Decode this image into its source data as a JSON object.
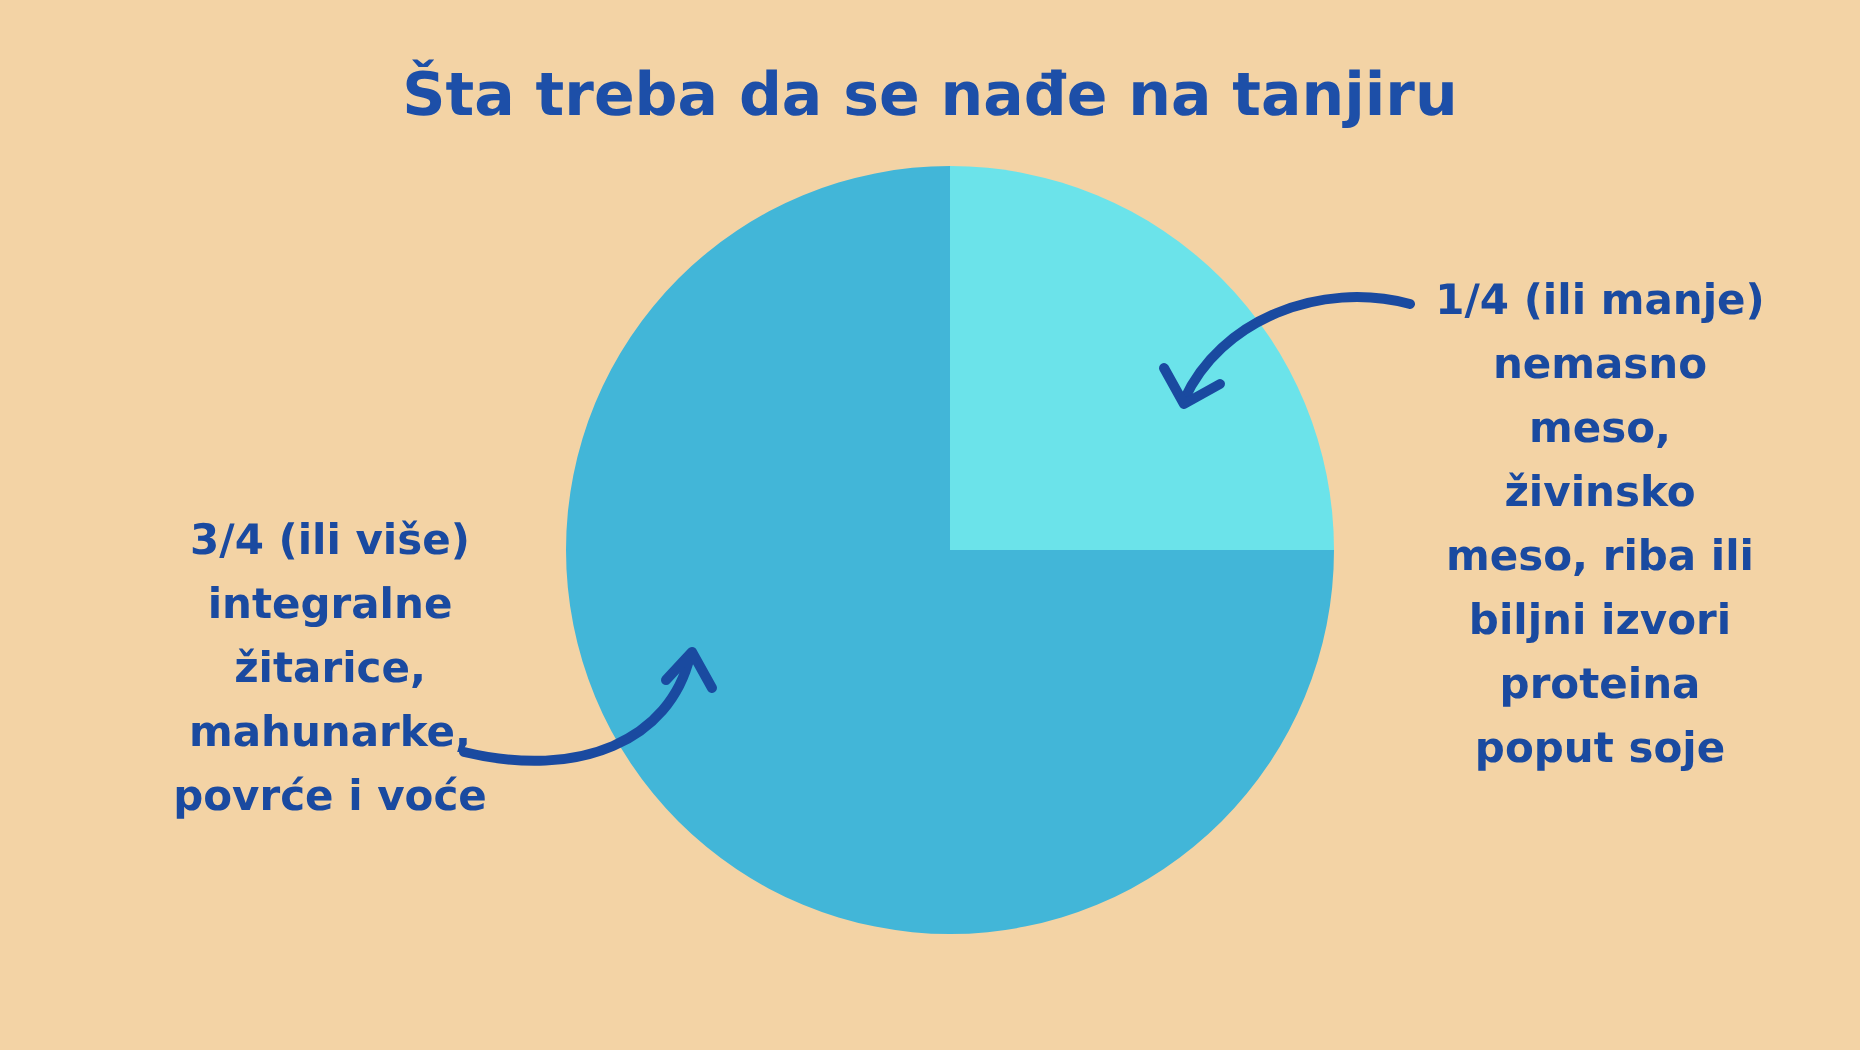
{
  "chart_data": {
    "type": "pie",
    "title": "Šta treba da se nađe na tanjiru",
    "categories": [
      "1/4 (ili manje)\nnemasno\nmeso,\nživinsko\nmeso, riba ili\nbiljni izvori\nproteina\npoput soje",
      "3/4 (ili više)\nintegralne\nžitarice,\nmahunarke,\npovrće i voće"
    ],
    "values": [
      25,
      75
    ],
    "colors": [
      "#6be3ea",
      "#42b6d8"
    ],
    "legend": false
  }
}
